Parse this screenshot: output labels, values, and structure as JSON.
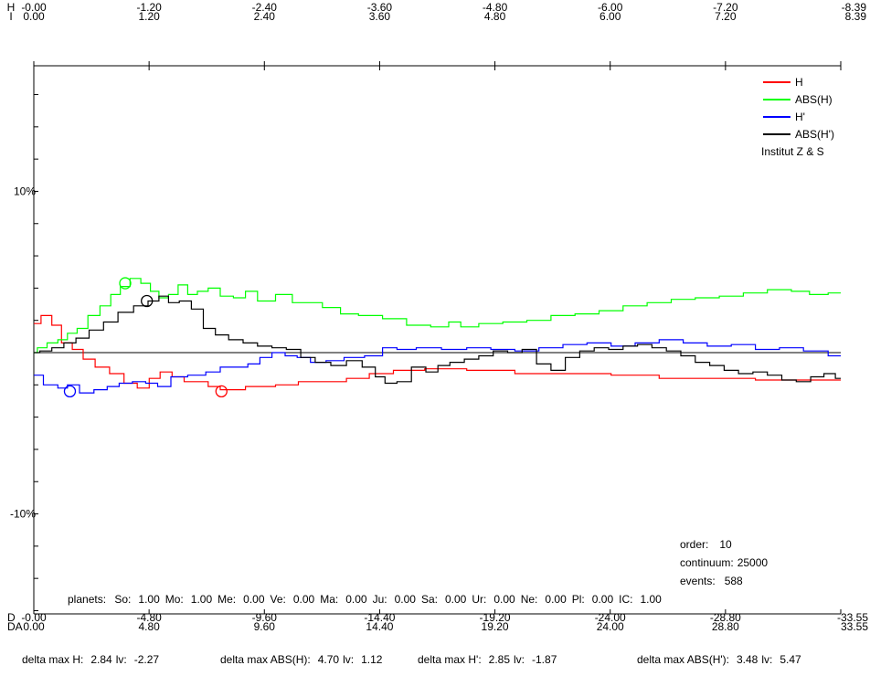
{
  "chart_data": {
    "type": "line",
    "top_axis": {
      "row_labels": [
        "H",
        "I"
      ],
      "ticks": [
        {
          "h": "-0.00",
          "i": "0.00"
        },
        {
          "h": "-1.20",
          "i": "1.20"
        },
        {
          "h": "-2.40",
          "i": "2.40"
        },
        {
          "h": "-3.60",
          "i": "3.60"
        },
        {
          "h": "-4.80",
          "i": "4.80"
        },
        {
          "h": "-6.00",
          "i": "6.00"
        },
        {
          "h": "-7.20",
          "i": "7.20"
        },
        {
          "h": "-8.39",
          "i": "8.39"
        }
      ]
    },
    "bottom_axis": {
      "row_labels": [
        "D",
        "DA"
      ],
      "ticks": [
        {
          "d": "-0.00",
          "da": "0.00"
        },
        {
          "d": "-4.80",
          "da": "4.80"
        },
        {
          "d": "-9.60",
          "da": "9.60"
        },
        {
          "d": "-14.40",
          "da": "14.40"
        },
        {
          "d": "-19.20",
          "da": "19.20"
        },
        {
          "d": "-24.00",
          "da": "24.00"
        },
        {
          "d": "-28.80",
          "da": "28.80"
        },
        {
          "d": "-33.55",
          "da": "33.55"
        }
      ]
    },
    "x_range": [
      0,
      33.55
    ],
    "y_axis": {
      "labels": [
        {
          "value": 10,
          "text": "10%"
        },
        {
          "value": -10,
          "text": "-10%"
        }
      ],
      "ylim": [
        -16.2,
        16.2
      ],
      "minor_step": 2
    },
    "legend": {
      "position": "top-right",
      "entries": [
        {
          "label": "H",
          "color": "#ff0000"
        },
        {
          "label": "ABS(H)",
          "color": "#00ff00"
        },
        {
          "label": "H'",
          "color": "#0000ff"
        },
        {
          "label": "ABS(H')",
          "color": "#000000"
        }
      ],
      "note": "Institut  Z & S"
    },
    "series": [
      {
        "name": "H",
        "color": "#ff0000",
        "x": [
          0,
          0.6,
          0.9,
          1.4,
          1.8,
          2.3,
          2.8,
          3.5,
          4.0,
          4.6,
          5.0,
          5.5,
          6.0,
          6.5,
          7.0,
          7.5,
          8.0,
          8.6,
          9.0,
          9.6,
          10.5,
          11.5,
          12.5,
          13.5,
          14.4,
          15.5,
          17.0,
          19.0,
          21.0,
          23.0,
          25.0,
          27.0,
          29.0,
          31.0,
          33.55
        ],
        "y": [
          1.8,
          2.3,
          1.7,
          0.6,
          0.2,
          -0.4,
          -0.9,
          -1.3,
          -1.9,
          -2.2,
          -1.6,
          -1.2,
          -1.5,
          -1.8,
          -1.8,
          -2.1,
          -2.3,
          -2.3,
          -2.1,
          -2.1,
          -2.0,
          -1.8,
          -1.8,
          -1.6,
          -1.3,
          -1.1,
          -1.0,
          -1.1,
          -1.3,
          -1.3,
          -1.4,
          -1.6,
          -1.6,
          -1.7,
          -1.7
        ]
      },
      {
        "name": "ABS(H)",
        "color": "#00ff00",
        "x": [
          0,
          0.3,
          0.8,
          1.2,
          1.6,
          2.0,
          2.5,
          3.0,
          3.4,
          3.8,
          4.2,
          4.7,
          5.0,
          5.4,
          5.8,
          6.2,
          6.6,
          7.0,
          7.5,
          8.0,
          8.6,
          9.0,
          9.6,
          10.5,
          11.0,
          11.5,
          12.5,
          13.0,
          14.0,
          15.0,
          16.0,
          17.0,
          17.5,
          18.0,
          19.0,
          20.0,
          21.0,
          22.0,
          23.0,
          24.0,
          25.0,
          26.0,
          27.0,
          28.0,
          29.0,
          30.0,
          31.0,
          32.0,
          32.5,
          33.55
        ],
        "y": [
          0.0,
          0.3,
          0.6,
          0.8,
          1.2,
          1.5,
          2.3,
          2.9,
          3.6,
          4.1,
          4.6,
          4.3,
          3.8,
          3.4,
          3.6,
          4.2,
          3.6,
          3.8,
          4.0,
          3.5,
          3.4,
          3.8,
          3.2,
          3.6,
          3.1,
          3.1,
          2.8,
          2.4,
          2.3,
          2.1,
          1.7,
          1.6,
          1.9,
          1.6,
          1.8,
          1.9,
          2.0,
          2.3,
          2.4,
          2.6,
          2.9,
          3.1,
          3.3,
          3.4,
          3.5,
          3.7,
          3.9,
          3.8,
          3.6,
          3.7
        ]
      },
      {
        "name": "H'",
        "color": "#0000ff",
        "x": [
          0,
          0.8,
          1.2,
          1.6,
          2.2,
          2.8,
          3.3,
          3.8,
          4.4,
          4.9,
          5.4,
          6.0,
          6.8,
          7.5,
          8.0,
          8.6,
          9.2,
          9.6,
          10.2,
          10.7,
          11.2,
          11.8,
          12.5,
          13.3,
          14.2,
          14.8,
          15.4,
          16.4,
          17.5,
          18.5,
          19.5,
          20.5,
          21.5,
          22.5,
          23.5,
          24.5,
          25.5,
          26.5,
          27.5,
          28.5,
          29.5,
          30.5,
          31.5,
          32.5,
          33.55
        ],
        "y": [
          -1.4,
          -2.0,
          -2.2,
          -2.0,
          -2.5,
          -2.3,
          -2.1,
          -1.9,
          -1.8,
          -1.9,
          -2.1,
          -1.5,
          -1.4,
          -1.2,
          -0.9,
          -0.9,
          -0.7,
          -0.3,
          0.0,
          -0.2,
          -0.3,
          -0.6,
          -0.5,
          -0.3,
          -0.2,
          0.3,
          0.2,
          0.3,
          0.2,
          0.3,
          0.2,
          0.1,
          0.3,
          0.5,
          0.6,
          0.4,
          0.6,
          0.8,
          0.6,
          0.4,
          0.5,
          0.2,
          0.3,
          0.1,
          -0.2
        ]
      },
      {
        "name": "ABS(H')",
        "color": "#000000",
        "x": [
          0,
          0.5,
          1.0,
          1.5,
          2.0,
          2.6,
          3.2,
          3.8,
          4.5,
          5.0,
          5.4,
          5.8,
          6.3,
          6.8,
          7.3,
          7.8,
          8.4,
          9.0,
          9.6,
          10.2,
          10.8,
          11.4,
          12.0,
          12.7,
          13.3,
          14.0,
          14.4,
          14.8,
          15.4,
          16.0,
          16.6,
          17.0,
          17.6,
          18.2,
          18.8,
          19.4,
          20.0,
          20.6,
          21.2,
          21.8,
          22.4,
          23.0,
          23.6,
          24.2,
          24.8,
          25.4,
          26.0,
          26.6,
          27.2,
          27.8,
          28.4,
          29.0,
          29.6,
          30.2,
          30.8,
          31.4,
          32.0,
          32.6,
          33.1,
          33.55
        ],
        "y": [
          0.0,
          0.1,
          0.3,
          0.6,
          0.9,
          1.4,
          1.9,
          2.5,
          2.9,
          3.2,
          3.5,
          3.1,
          3.2,
          2.7,
          1.5,
          1.1,
          0.8,
          0.6,
          0.4,
          0.3,
          0.2,
          -0.3,
          -0.6,
          -0.8,
          -0.5,
          -0.9,
          -1.5,
          -1.9,
          -1.8,
          -0.9,
          -1.2,
          -0.8,
          -0.6,
          -0.4,
          -0.2,
          0.1,
          0.0,
          0.2,
          -0.7,
          -1.1,
          -0.3,
          0.1,
          0.3,
          0.2,
          0.4,
          0.5,
          0.3,
          0.1,
          -0.2,
          -0.6,
          -0.8,
          -1.1,
          -1.3,
          -1.2,
          -1.4,
          -1.7,
          -1.8,
          -1.5,
          -1.3,
          -1.6
        ]
      }
    ],
    "markers": [
      {
        "series": "H",
        "x": 7.8,
        "y": -2.4,
        "color": "#ff0000"
      },
      {
        "series": "ABS(H)",
        "x": 3.8,
        "y": 4.3,
        "color": "#00ff00"
      },
      {
        "series": "H'",
        "x": 1.5,
        "y": -2.4,
        "color": "#0000ff"
      },
      {
        "series": "ABS(H')",
        "x": 4.7,
        "y": 3.2,
        "color": "#000000"
      }
    ]
  },
  "info": {
    "order_label": "order:",
    "order_value": "10",
    "continuum_label": "continuum:",
    "continuum_value": "25000",
    "events_label": "events:",
    "events_value": "588"
  },
  "planets": {
    "label": "planets:",
    "items": [
      {
        "name": "So:",
        "value": "1.00"
      },
      {
        "name": "Mo:",
        "value": "1.00"
      },
      {
        "name": "Me:",
        "value": "0.00"
      },
      {
        "name": "Ve:",
        "value": "0.00"
      },
      {
        "name": "Ma:",
        "value": "0.00"
      },
      {
        "name": "Ju:",
        "value": "0.00"
      },
      {
        "name": "Sa:",
        "value": "0.00"
      },
      {
        "name": "Ur:",
        "value": "0.00"
      },
      {
        "name": "Ne:",
        "value": "0.00"
      },
      {
        "name": "Pl:",
        "value": "0.00"
      },
      {
        "name": "IC:",
        "value": "1.00"
      }
    ]
  },
  "deltas": [
    {
      "label": "delta max H:",
      "value": "2.84",
      "lv_label": "lv:",
      "lv": "-2.27"
    },
    {
      "label": "delta max ABS(H):",
      "value": "4.70",
      "lv_label": "lv:",
      "lv": "1.12"
    },
    {
      "label": "delta max H':",
      "value": "2.85",
      "lv_label": "lv:",
      "lv": "-1.87"
    },
    {
      "label": "delta max ABS(H'):",
      "value": "3.48",
      "lv_label": "lv:",
      "lv": "5.47"
    }
  ]
}
